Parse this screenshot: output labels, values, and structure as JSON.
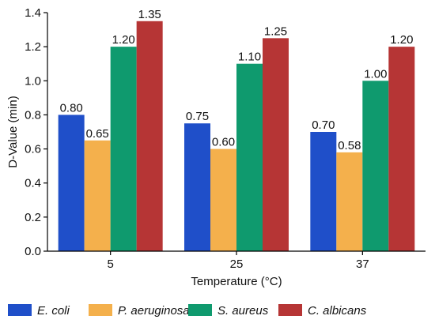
{
  "chart_data": {
    "type": "bar",
    "categories": [
      "5",
      "25",
      "37"
    ],
    "series": [
      {
        "name": "E. coli",
        "values": [
          0.8,
          0.75,
          0.7
        ],
        "labels": [
          "0.80",
          "0.75",
          "0.70"
        ],
        "color": "#1f4fc9"
      },
      {
        "name": "P. aeruginosa",
        "values": [
          0.65,
          0.6,
          0.58
        ],
        "labels": [
          "0.65",
          "0.60",
          "0.58"
        ],
        "color": "#f4b04c"
      },
      {
        "name": "S. aureus",
        "values": [
          1.2,
          1.1,
          1.0
        ],
        "labels": [
          "1.20",
          "1.10",
          "1.00"
        ],
        "color": "#0f9a6e"
      },
      {
        "name": "C. albicans",
        "values": [
          1.35,
          1.25,
          1.2
        ],
        "labels": [
          "1.35",
          "1.25",
          "1.20"
        ],
        "color": "#b63535"
      }
    ],
    "xlabel": "Temperature (°C)",
    "ylabel": "D-Value (min)",
    "ylim": [
      0,
      1.4
    ],
    "yticks": [
      "0.0",
      "0.2",
      "0.4",
      "0.6",
      "0.8",
      "1.0",
      "1.2",
      "1.4"
    ],
    "grid": false,
    "legend_position": "bottom"
  }
}
